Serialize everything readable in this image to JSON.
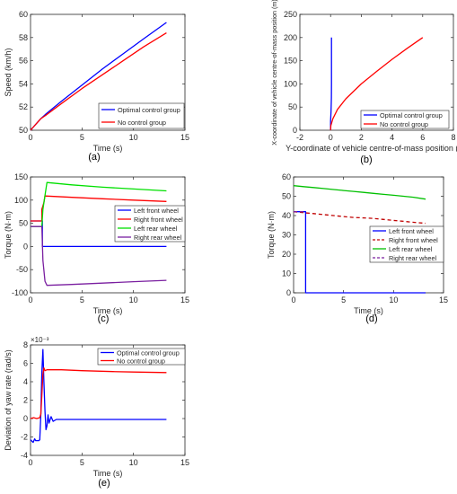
{
  "chart_data": [
    {
      "id": "a",
      "type": "line",
      "caption": "(a)",
      "xlabel": "Time (s)",
      "ylabel": "Speed (km/h)",
      "xlim": [
        0,
        15
      ],
      "ylim": [
        50,
        60
      ],
      "xticks": [
        0,
        5,
        10,
        15
      ],
      "yticks": [
        50,
        52,
        54,
        56,
        58,
        60
      ],
      "legend_position": "bottom-right",
      "series": [
        {
          "name": "Optimal control group",
          "color": "#0000ff",
          "style": "solid",
          "x": [
            0,
            0.5,
            1,
            1.5,
            3,
            5,
            7,
            9,
            11,
            13.2
          ],
          "y": [
            50,
            50.5,
            51,
            51.4,
            52.5,
            53.9,
            55.3,
            56.6,
            57.9,
            59.3
          ]
        },
        {
          "name": "No control group",
          "color": "#ff0000",
          "style": "solid",
          "x": [
            0,
            0.5,
            1,
            1.5,
            3,
            5,
            7,
            9,
            11,
            13.2
          ],
          "y": [
            50,
            50.5,
            51,
            51.3,
            52.3,
            53.6,
            54.8,
            56,
            57.2,
            58.4
          ]
        }
      ]
    },
    {
      "id": "b",
      "type": "line",
      "caption": "(b)",
      "xlabel": "Y-coordinate of vehicle centre-of-mass position (m)",
      "ylabel": "X-coordinate of vehicle centre-of-mass position (m)",
      "xlim": [
        -2,
        8
      ],
      "ylim": [
        0,
        250
      ],
      "xticks": [
        -2,
        0,
        2,
        4,
        6,
        8
      ],
      "yticks": [
        0,
        50,
        100,
        150,
        200,
        250
      ],
      "legend_position": "bottom-right",
      "series": [
        {
          "name": "Optimal control group",
          "color": "#0000ff",
          "style": "solid",
          "x": [
            0,
            0,
            0.03,
            0.05,
            0.06,
            0.06,
            0.06
          ],
          "y": [
            0,
            20,
            40,
            70,
            100,
            150,
            200
          ]
        },
        {
          "name": "No control group",
          "color": "#ff0000",
          "style": "solid",
          "x": [
            0,
            0.02,
            0.15,
            0.45,
            1,
            2,
            3,
            4,
            5,
            6
          ],
          "y": [
            0,
            10,
            25,
            45,
            68,
            100,
            127,
            153,
            177,
            200
          ]
        }
      ]
    },
    {
      "id": "c",
      "type": "line",
      "caption": "(c)",
      "xlabel": "Time (s)",
      "ylabel": "Torque (N·m)",
      "xlim": [
        0,
        15
      ],
      "ylim": [
        -100,
        150
      ],
      "xticks": [
        0,
        5,
        10,
        15
      ],
      "yticks": [
        -100,
        -50,
        0,
        50,
        100,
        150
      ],
      "legend_position": "right",
      "series": [
        {
          "name": "Left front wheel",
          "color": "#0000ff",
          "style": "solid",
          "x": [
            0,
            1.15,
            1.15,
            13.2
          ],
          "y": [
            55,
            55,
            0,
            0
          ]
        },
        {
          "name": "Right front wheel",
          "color": "#ff0000",
          "style": "solid",
          "x": [
            0,
            1.1,
            1.1,
            1.3,
            1.4,
            4,
            7,
            10,
            13.2
          ],
          "y": [
            55,
            55,
            80,
            95,
            109,
            106,
            103,
            100,
            97
          ]
        },
        {
          "name": "Left rear wheel",
          "color": "#00e000",
          "style": "solid",
          "x": [
            0,
            1.1,
            1.2,
            1.4,
            1.6,
            4,
            7,
            10,
            13.2
          ],
          "y": [
            43,
            43,
            80,
            110,
            138,
            133,
            128,
            124,
            120
          ]
        },
        {
          "name": "Right rear wheel",
          "color": "#7a1fa0",
          "style": "solid",
          "x": [
            0,
            1.1,
            1.2,
            1.4,
            1.6,
            4,
            7,
            10,
            13.2
          ],
          "y": [
            43,
            43,
            -30,
            -75,
            -84,
            -82,
            -79,
            -76,
            -73
          ]
        }
      ]
    },
    {
      "id": "d",
      "type": "line",
      "caption": "(d)",
      "xlabel": "Time (s)",
      "ylabel": "Torque (N·m)",
      "xlim": [
        0,
        15
      ],
      "ylim": [
        0,
        60
      ],
      "xticks": [
        0,
        5,
        10,
        15
      ],
      "yticks": [
        0,
        10,
        20,
        30,
        40,
        50,
        60
      ],
      "legend_position": "right",
      "series": [
        {
          "name": "Left front wheel",
          "color": "#0000ff",
          "style": "solid",
          "x": [
            0,
            1.2,
            1.2,
            13.2
          ],
          "y": [
            42,
            42,
            0,
            0
          ]
        },
        {
          "name": "Right front wheel",
          "color": "#c00000",
          "style": "dashed",
          "x": [
            0,
            1,
            2,
            3,
            4,
            5,
            6,
            7,
            8,
            9,
            10,
            11,
            12,
            13.2
          ],
          "y": [
            42,
            41.5,
            41,
            40.5,
            40,
            39.5,
            39,
            38.8,
            38.5,
            38,
            37.5,
            37,
            36.5,
            36
          ]
        },
        {
          "name": "Left rear wheel",
          "color": "#00c000",
          "style": "solid",
          "x": [
            0,
            1,
            2,
            3,
            4,
            5,
            6,
            7,
            8,
            9,
            10,
            11,
            12,
            13.2
          ],
          "y": [
            55.5,
            55,
            54.5,
            54,
            53.5,
            53,
            52.5,
            52,
            51.5,
            51,
            50.5,
            50,
            49.5,
            48.5
          ]
        },
        {
          "name": "Right rear wheel",
          "color": "#7a1fa0",
          "style": "dashed",
          "x": [
            0,
            1.2
          ],
          "y": [
            42,
            42
          ]
        }
      ]
    },
    {
      "id": "e",
      "type": "line",
      "caption": "(e)",
      "xlabel": "Time (s)",
      "ylabel": "Deviation of yaw rate (rad/s)",
      "exponent_label": "×10⁻³",
      "xlim": [
        0,
        15
      ],
      "ylim": [
        -4,
        8
      ],
      "xticks": [
        0,
        5,
        10,
        15
      ],
      "yticks": [
        -4,
        -2,
        0,
        2,
        4,
        6,
        8
      ],
      "legend_position": "top-right",
      "series": [
        {
          "name": "Optimal control group",
          "color": "#0000ff",
          "style": "solid",
          "x": [
            0,
            0.25,
            0.4,
            0.5,
            0.6,
            0.7,
            0.8,
            0.9,
            1.0,
            1.1,
            1.2,
            1.3,
            1.4,
            1.5,
            1.6,
            1.7,
            1.8,
            2.0,
            2.2,
            2.5,
            3,
            5,
            8,
            10,
            13.2
          ],
          "y": [
            -2.3,
            -2.6,
            -2.2,
            -2.4,
            -2.4,
            -2.4,
            -2.4,
            -2.3,
            0.5,
            5.0,
            7.5,
            4.0,
            0.8,
            -1.2,
            -0.8,
            0.4,
            -0.5,
            0.2,
            -0.3,
            -0.1,
            -0.1,
            -0.1,
            -0.1,
            -0.1,
            -0.1
          ]
        },
        {
          "name": "No control group",
          "color": "#ff0000",
          "style": "solid",
          "x": [
            0,
            0.3,
            0.6,
            0.9,
            1.0,
            1.1,
            1.2,
            1.3,
            1.4,
            1.6,
            2.0,
            3,
            5,
            8,
            10,
            13.2
          ],
          "y": [
            0,
            0.1,
            0,
            0.1,
            0.5,
            2.5,
            4.8,
            5.5,
            5.2,
            5.3,
            5.3,
            5.3,
            5.2,
            5.1,
            5.05,
            5.0
          ]
        }
      ]
    }
  ]
}
